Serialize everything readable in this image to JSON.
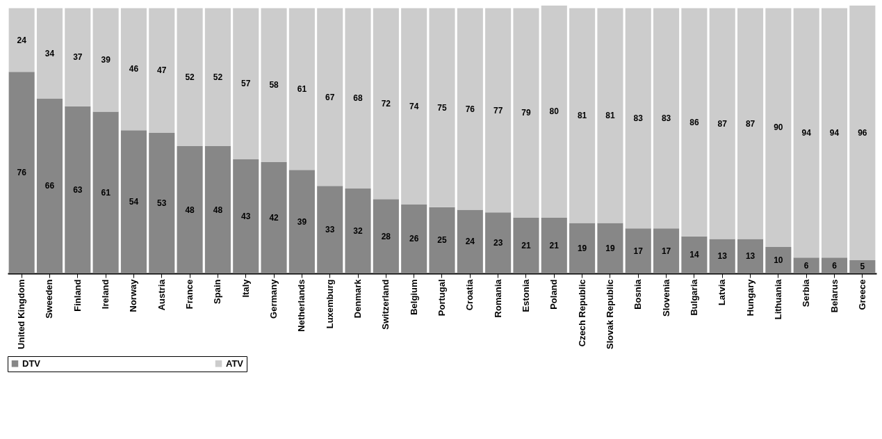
{
  "chart_data": {
    "type": "bar",
    "stacked": true,
    "data_labels": true,
    "legend": "bottom",
    "grid": false,
    "ylim": [
      0,
      101
    ],
    "tick_labels": "x",
    "categories": [
      "United Kingdom",
      "Sweeden",
      "Finland",
      "Ireland",
      "Norway",
      "Austria",
      "France",
      "Spain",
      "Italy",
      "Germany",
      "Netherlands",
      "Luxemburg",
      "Denmark",
      "Switzerland",
      "Belgium",
      "Portugal",
      "Croatia",
      "Romania",
      "Estonia",
      "Poland",
      "Czech Republic",
      "Slovak Republic",
      "Bosnia",
      "Slovenia",
      "Bulgaria",
      "Latvia",
      "Hungary",
      "Lithuania",
      "Serbia",
      "Belarus",
      "Greece"
    ],
    "series": [
      {
        "name": "DTV",
        "color": "#878787",
        "values": [
          76,
          66,
          63,
          61,
          54,
          53,
          48,
          48,
          43,
          42,
          39,
          33,
          32,
          28,
          26,
          25,
          24,
          23,
          21,
          21,
          19,
          19,
          17,
          17,
          14,
          13,
          13,
          10,
          6,
          6,
          5
        ]
      },
      {
        "name": "ATV",
        "color": "#cccccc",
        "values": [
          24,
          34,
          37,
          39,
          46,
          47,
          52,
          52,
          57,
          58,
          61,
          67,
          68,
          72,
          74,
          75,
          76,
          77,
          79,
          80,
          81,
          81,
          83,
          83,
          86,
          87,
          87,
          90,
          94,
          94,
          96
        ]
      }
    ]
  }
}
